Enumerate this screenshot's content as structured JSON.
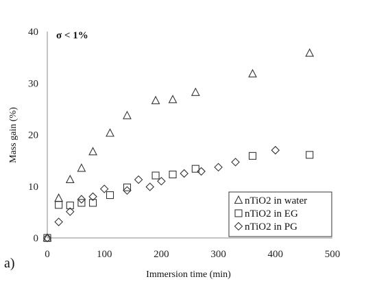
{
  "chart_data": {
    "type": "scatter",
    "panel_label": "a)",
    "annotation": "σ < 1%",
    "xlabel": "Immersion time (min)",
    "ylabel": "Mass gain (%)",
    "xlim": [
      0,
      500
    ],
    "ylim": [
      0,
      40
    ],
    "xticks": [
      "0",
      "100",
      "200",
      "300",
      "400",
      "500"
    ],
    "yticks": [
      "0",
      "10",
      "20",
      "30",
      "40"
    ],
    "grid": false,
    "legend_position": "bottom-right",
    "series": [
      {
        "name": "nTiO2 in water",
        "marker": "triangle",
        "points": [
          [
            0,
            0
          ],
          [
            20,
            7.7
          ],
          [
            40,
            11.3
          ],
          [
            60,
            13.5
          ],
          [
            80,
            16.7
          ],
          [
            110,
            20.3
          ],
          [
            140,
            23.7
          ],
          [
            190,
            26.6
          ],
          [
            220,
            26.8
          ],
          [
            260,
            28.2
          ],
          [
            360,
            31.8
          ],
          [
            460,
            35.8
          ]
        ]
      },
      {
        "name": "nTiO2 in EG",
        "marker": "square",
        "points": [
          [
            0,
            0
          ],
          [
            20,
            6.4
          ],
          [
            40,
            6.3
          ],
          [
            60,
            6.8
          ],
          [
            80,
            6.8
          ],
          [
            110,
            8.3
          ],
          [
            140,
            9.8
          ],
          [
            190,
            12.1
          ],
          [
            220,
            12.3
          ],
          [
            260,
            13.4
          ],
          [
            360,
            15.9
          ],
          [
            460,
            16.1
          ]
        ]
      },
      {
        "name": "nTiO2 in PG",
        "marker": "diamond",
        "points": [
          [
            0,
            0
          ],
          [
            20,
            3.1
          ],
          [
            40,
            5.1
          ],
          [
            60,
            7.5
          ],
          [
            80,
            8.0
          ],
          [
            100,
            9.5
          ],
          [
            140,
            9.2
          ],
          [
            160,
            11.3
          ],
          [
            180,
            9.9
          ],
          [
            200,
            11.0
          ],
          [
            240,
            12.5
          ],
          [
            270,
            12.9
          ],
          [
            300,
            13.7
          ],
          [
            330,
            14.7
          ],
          [
            400,
            17.0
          ]
        ]
      }
    ]
  }
}
